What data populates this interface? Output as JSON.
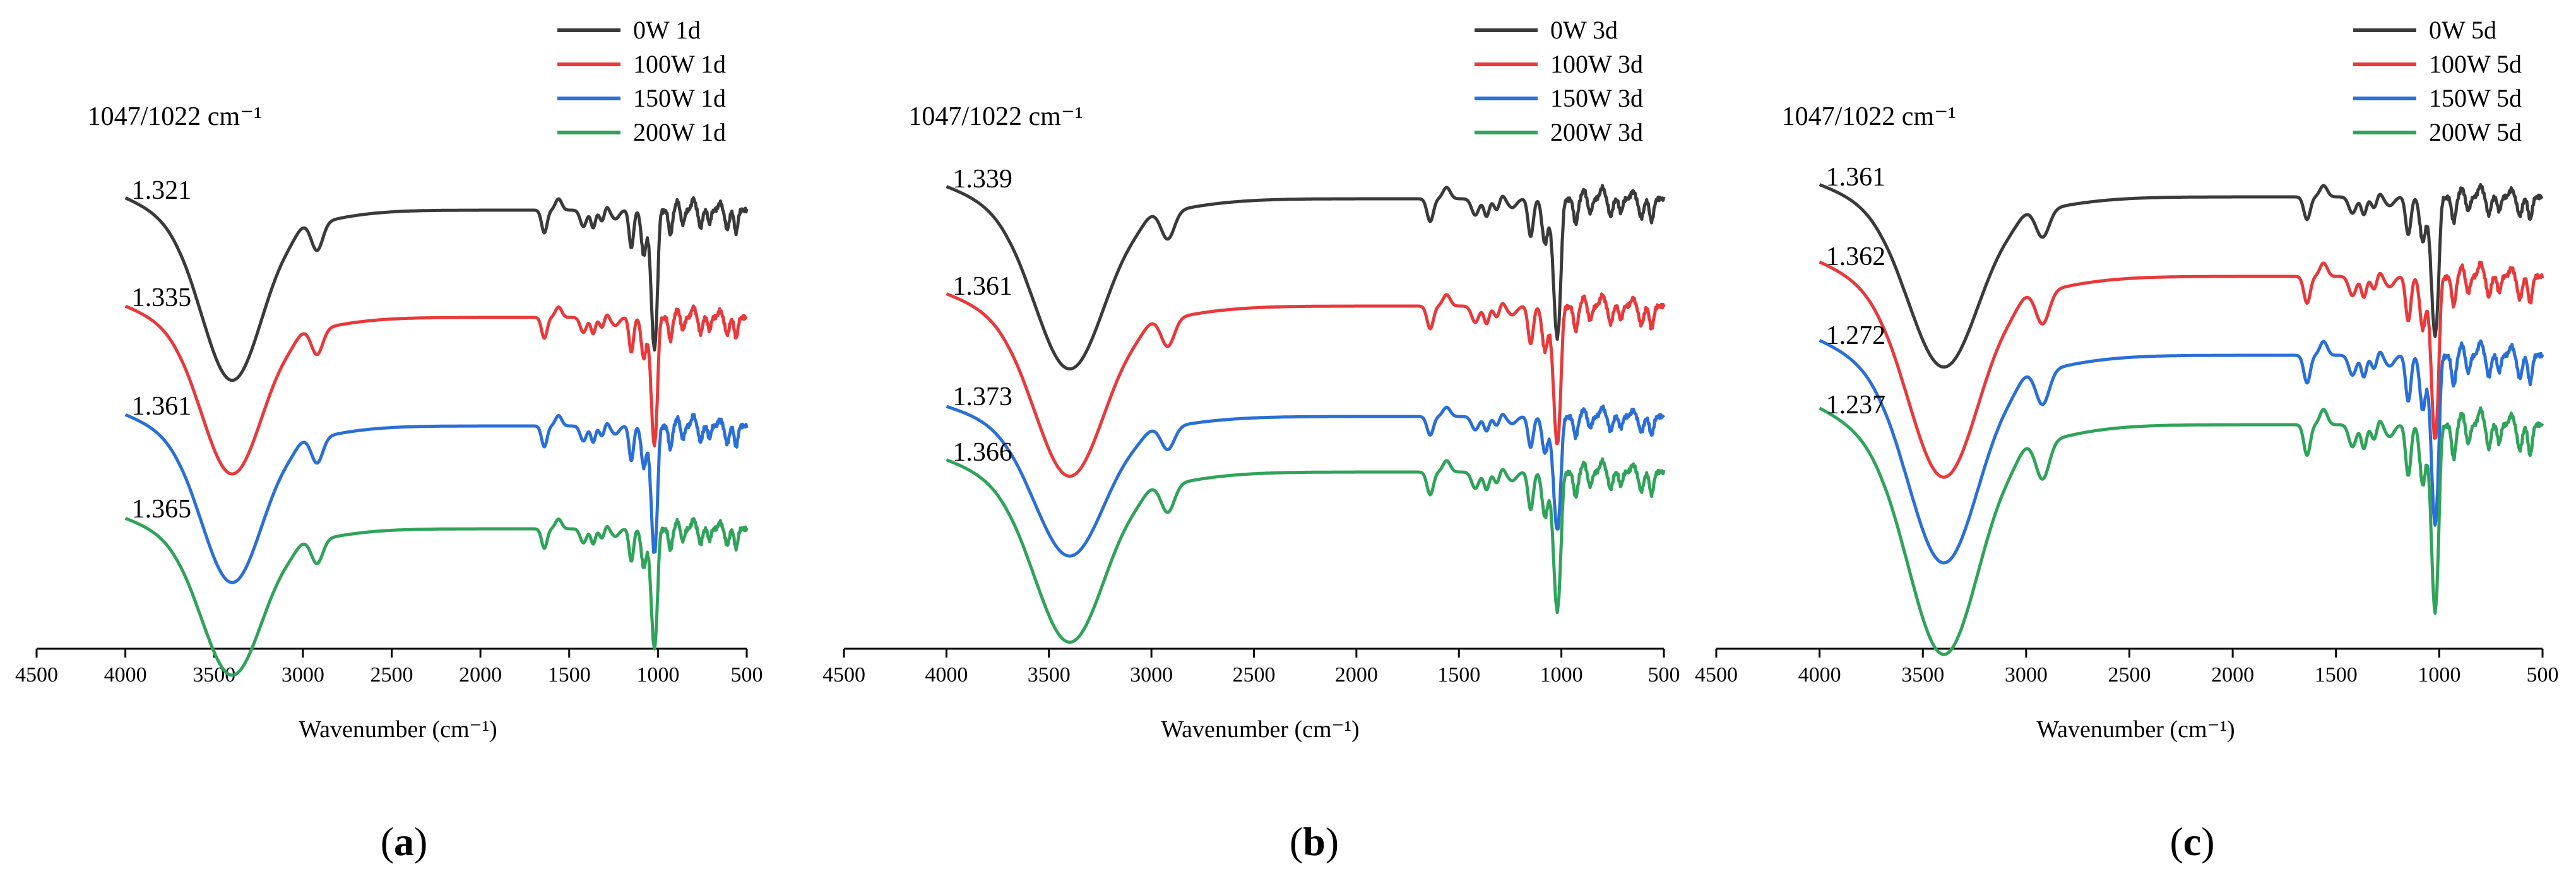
{
  "figure": {
    "panels": [
      "(a)",
      "(b)",
      "(c)"
    ]
  },
  "chart_data": [
    {
      "type": "line",
      "panel_label": "(a)",
      "panel_letter": "a",
      "xlabel": "Wavenumber (cm⁻¹)",
      "ylabel": "",
      "xlim": [
        4500,
        500
      ],
      "x_ticks": [
        4500,
        4000,
        3500,
        3000,
        2500,
        2000,
        1500,
        1000,
        500
      ],
      "annotation_title": "1047/1022 cm⁻¹",
      "series": [
        {
          "name": "0W 1d",
          "color": "#3a3a3a",
          "ratio": "1.321"
        },
        {
          "name": "100W 1d",
          "color": "#e8393b",
          "ratio": "1.335"
        },
        {
          "name": "150W 1d",
          "color": "#2a6fd6",
          "ratio": "1.361"
        },
        {
          "name": "200W 1d",
          "color": "#2fa35a",
          "ratio": "1.365"
        }
      ]
    },
    {
      "type": "line",
      "panel_label": "(b)",
      "panel_letter": "b",
      "xlabel": "Wavenumber (cm⁻¹)",
      "ylabel": "",
      "xlim": [
        4500,
        500
      ],
      "x_ticks": [
        4500,
        4000,
        3500,
        3000,
        2500,
        2000,
        1500,
        1000,
        500
      ],
      "annotation_title": "1047/1022 cm⁻¹",
      "series": [
        {
          "name": "0W 3d",
          "color": "#3a3a3a",
          "ratio": "1.339"
        },
        {
          "name": "100W 3d",
          "color": "#e8393b",
          "ratio": "1.361"
        },
        {
          "name": "150W 3d",
          "color": "#2a6fd6",
          "ratio": "1.373"
        },
        {
          "name": "200W 3d",
          "color": "#2fa35a",
          "ratio": "1.366"
        }
      ]
    },
    {
      "type": "line",
      "panel_label": "(c)",
      "panel_letter": "c",
      "xlabel": "Wavenumber (cm⁻¹)",
      "ylabel": "",
      "xlim": [
        4500,
        500
      ],
      "x_ticks": [
        4500,
        4000,
        3500,
        3000,
        2500,
        2000,
        1500,
        1000,
        500
      ],
      "annotation_title": "1047/1022 cm⁻¹",
      "series": [
        {
          "name": "0W 5d",
          "color": "#3a3a3a",
          "ratio": "1.361"
        },
        {
          "name": "100W 5d",
          "color": "#e8393b",
          "ratio": "1.362"
        },
        {
          "name": "150W 5d",
          "color": "#2a6fd6",
          "ratio": "1.272"
        },
        {
          "name": "200W 5d",
          "color": "#2fa35a",
          "ratio": "1.237"
        }
      ]
    }
  ]
}
